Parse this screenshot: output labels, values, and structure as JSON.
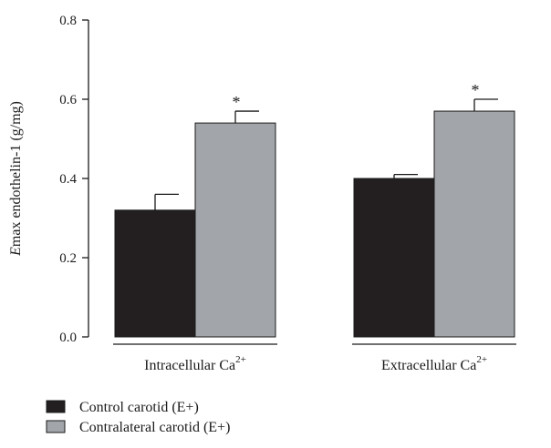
{
  "chart_data": {
    "type": "bar",
    "ylabel_prefix": "E",
    "ylabel_rest": "max endothelin-1 (g/mg)",
    "ylim": [
      0,
      0.8
    ],
    "yticks": [
      "0.0",
      "0.2",
      "0.4",
      "0.6",
      "0.8"
    ],
    "groups": [
      {
        "label": "Intracellular Ca",
        "sup": "2+"
      },
      {
        "label": "Extracellular Ca",
        "sup": "2+"
      }
    ],
    "series": [
      {
        "name": "Control carotid (E+)",
        "color": "#231f20",
        "values": [
          0.32,
          0.4
        ],
        "errors": [
          0.04,
          0.01
        ],
        "annotations": [
          "",
          ""
        ]
      },
      {
        "name": "Contralateral carotid (E+)",
        "color": "#a2a5aa",
        "values": [
          0.54,
          0.57
        ],
        "errors": [
          0.03,
          0.03
        ],
        "annotations": [
          "*",
          "*"
        ]
      }
    ],
    "legend_position": "bottom-left",
    "grid": false
  }
}
